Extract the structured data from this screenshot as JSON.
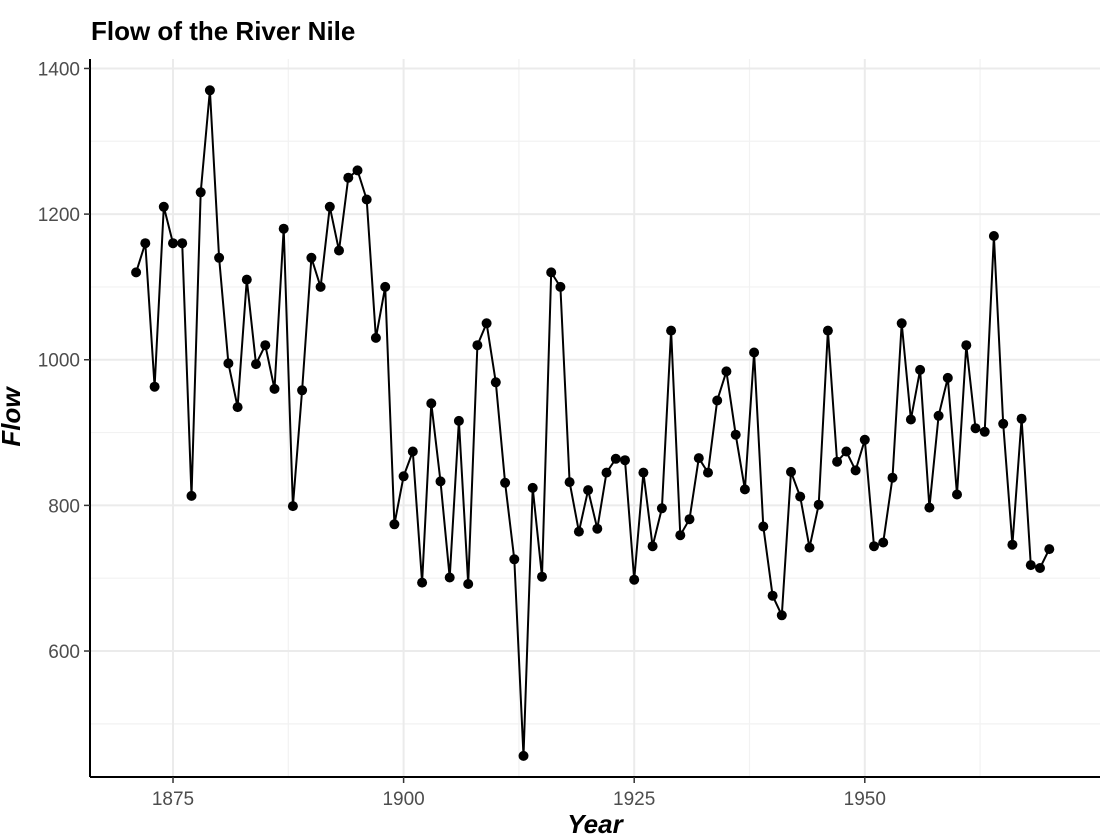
{
  "chart_data": {
    "type": "line",
    "title": "Flow of the River Nile",
    "xlabel": "Year",
    "ylabel": "Flow",
    "xlim": [
      1866,
      1975.5
    ],
    "ylim": [
      427,
      1413
    ],
    "x_ticks": [
      1875,
      1900,
      1925,
      1950
    ],
    "y_ticks": [
      600,
      800,
      1000,
      1200,
      1400
    ],
    "x_minor_ticks": [
      1887.5,
      1912.5,
      1937.5,
      1962.5
    ],
    "y_minor_ticks": [
      500,
      700,
      900,
      1100,
      1300
    ],
    "grid": true,
    "legend": "none",
    "line_color": "#000000",
    "point_color": "#000000",
    "series": [
      {
        "x": [
          1871,
          1872,
          1873,
          1874,
          1875,
          1876,
          1877,
          1878,
          1879,
          1880,
          1881,
          1882,
          1883,
          1884,
          1885,
          1886,
          1887,
          1888,
          1889,
          1890,
          1891,
          1892,
          1893,
          1894,
          1895,
          1896,
          1897,
          1898,
          1899,
          1900,
          1901,
          1902,
          1903,
          1904,
          1905,
          1906,
          1907,
          1908,
          1909,
          1910,
          1911,
          1912,
          1913,
          1914,
          1915,
          1916,
          1917,
          1918,
          1919,
          1920,
          1921,
          1922,
          1923,
          1924,
          1925,
          1926,
          1927,
          1928,
          1929,
          1930,
          1931,
          1932,
          1933,
          1934,
          1935,
          1936,
          1937,
          1938,
          1939,
          1940,
          1941,
          1942,
          1943,
          1944,
          1945,
          1946,
          1947,
          1948,
          1949,
          1950,
          1951,
          1952,
          1953,
          1954,
          1955,
          1956,
          1957,
          1958,
          1959,
          1960,
          1961,
          1962,
          1963,
          1964,
          1965,
          1966,
          1967,
          1968,
          1969,
          1970
        ],
        "values": [
          1120,
          1160,
          963,
          1210,
          1160,
          1160,
          813,
          1230,
          1370,
          1140,
          995,
          935,
          1110,
          994,
          1020,
          960,
          1180,
          799,
          958,
          1140,
          1100,
          1210,
          1150,
          1250,
          1260,
          1220,
          1030,
          1100,
          774,
          840,
          874,
          694,
          940,
          833,
          701,
          916,
          692,
          1020,
          1050,
          969,
          831,
          726,
          456,
          824,
          702,
          1120,
          1100,
          832,
          764,
          821,
          768,
          845,
          864,
          862,
          698,
          845,
          744,
          796,
          1040,
          759,
          781,
          865,
          845,
          944,
          984,
          897,
          822,
          1010,
          771,
          676,
          649,
          846,
          812,
          742,
          801,
          1040,
          860,
          874,
          848,
          890,
          744,
          749,
          838,
          1050,
          918,
          986,
          797,
          923,
          975,
          815,
          1020,
          906,
          901,
          1170,
          912,
          746,
          919,
          718,
          714,
          740
        ]
      }
    ]
  }
}
